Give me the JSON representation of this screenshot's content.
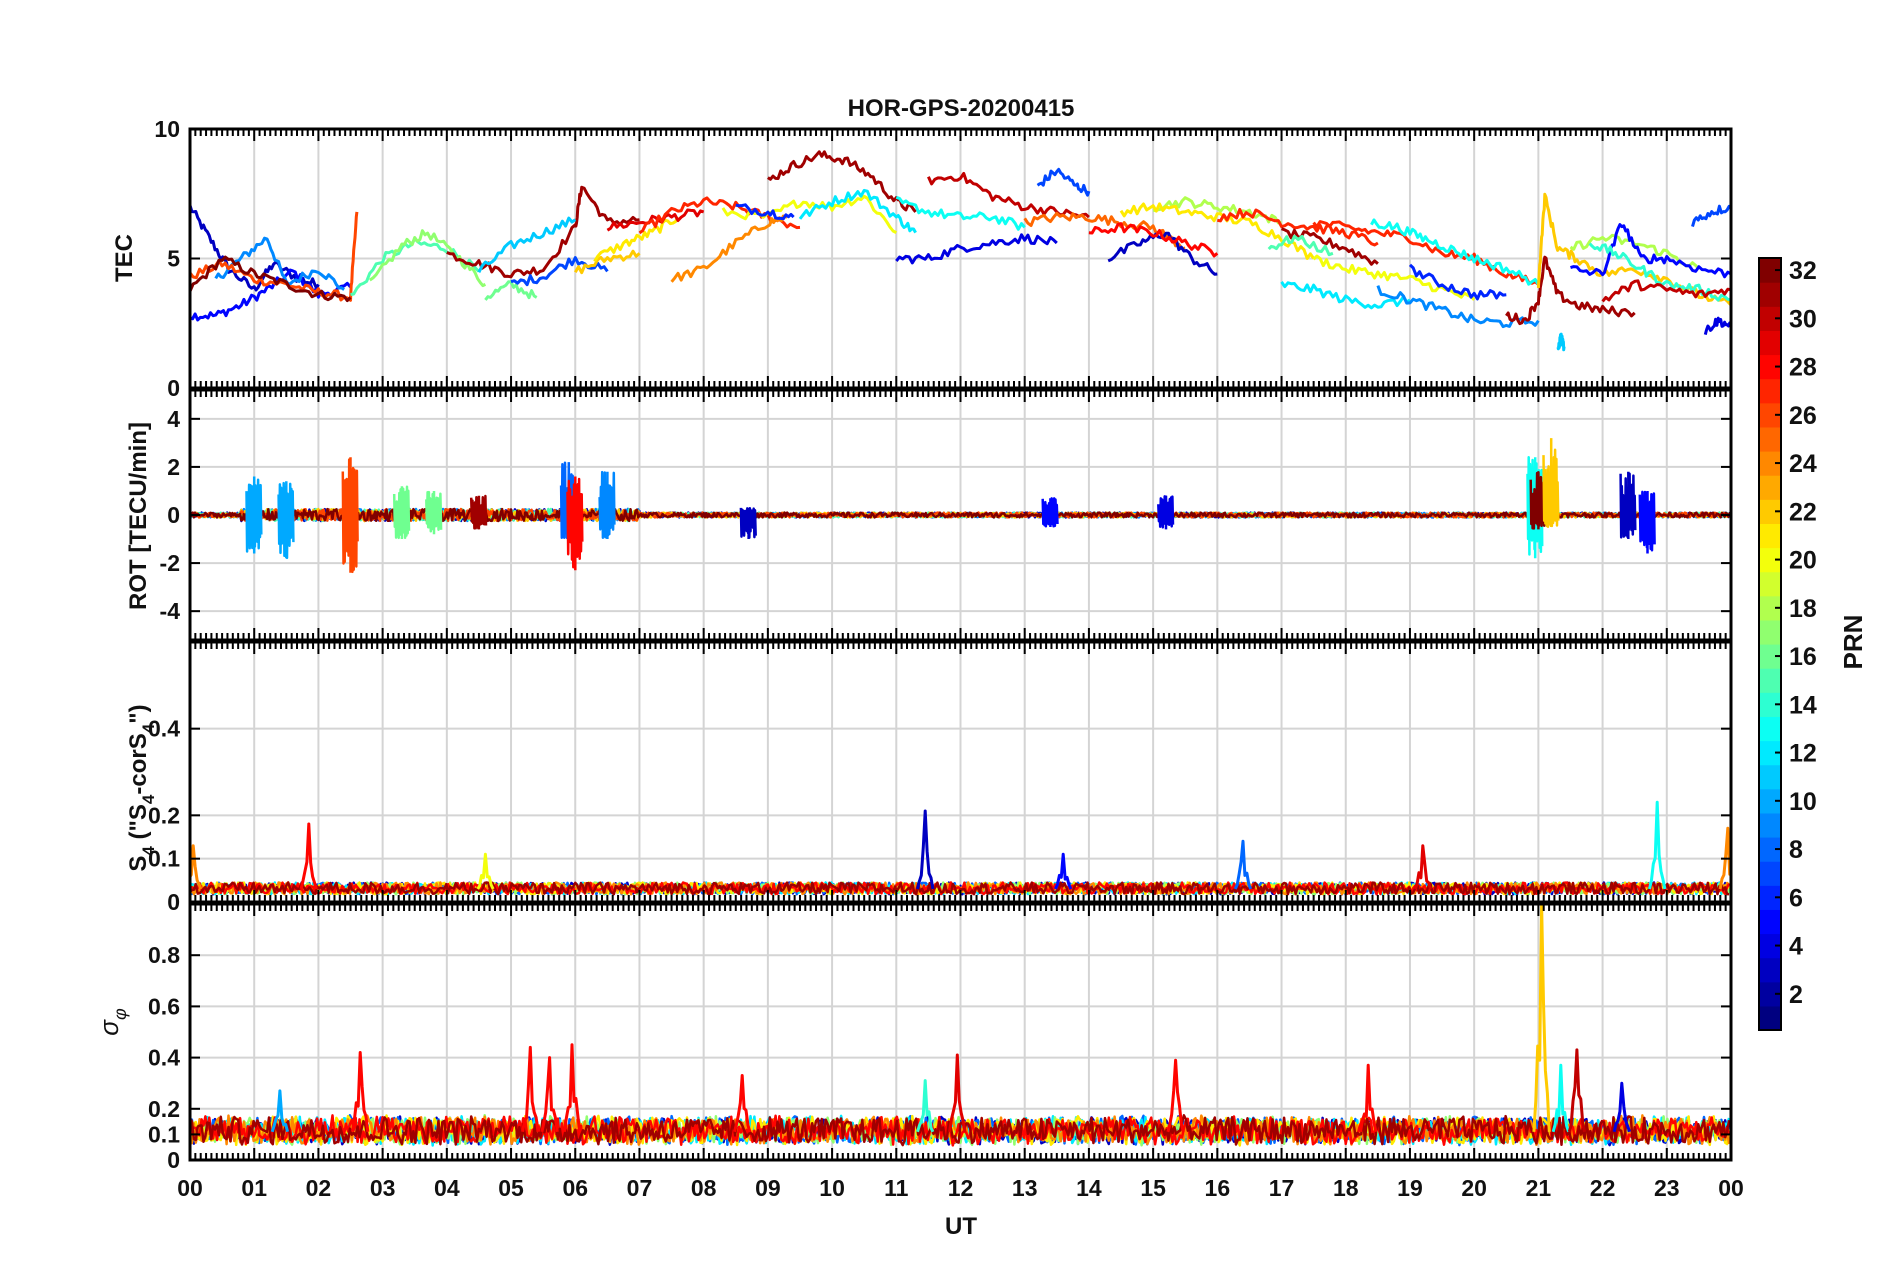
{
  "figure": {
    "title": "HOR-GPS-20200415",
    "xlabel": "UT",
    "x_ticks": [
      "00",
      "01",
      "02",
      "03",
      "04",
      "05",
      "06",
      "07",
      "08",
      "09",
      "10",
      "11",
      "12",
      "13",
      "14",
      "15",
      "16",
      "17",
      "18",
      "19",
      "20",
      "21",
      "22",
      "23",
      "00"
    ]
  },
  "colorbar": {
    "label": "PRN",
    "colormap": "jet",
    "range": [
      1,
      32
    ],
    "ticks": [
      "2",
      "4",
      "6",
      "8",
      "10",
      "12",
      "14",
      "16",
      "18",
      "20",
      "22",
      "24",
      "26",
      "28",
      "30",
      "32"
    ]
  },
  "chart_data": [
    {
      "type": "line",
      "panel": "tec",
      "title": "HOR-GPS-20200415",
      "ylabel": "TEC",
      "xlim": [
        0,
        24
      ],
      "ylim": [
        0,
        10
      ],
      "y_ticks": [
        "0",
        "5",
        "10"
      ],
      "grid": true,
      "series": [
        {
          "prn": 3,
          "x": [
            0.0,
            0.3,
            0.6,
            1.0,
            1.3,
            1.7,
            2.0
          ],
          "y": [
            7.0,
            5.8,
            4.6,
            3.8,
            4.8,
            4.2,
            4.0
          ]
        },
        {
          "prn": 5,
          "x": [
            0.0,
            0.4,
            0.8,
            1.2,
            1.6,
            2.0,
            2.5
          ],
          "y": [
            2.8,
            2.8,
            3.2,
            3.8,
            4.5,
            3.6,
            3.9
          ]
        },
        {
          "prn": 9,
          "x": [
            0.4,
            0.8,
            1.2,
            1.5,
            2.0,
            2.4
          ],
          "y": [
            4.2,
            5.0,
            5.8,
            4.0,
            4.6,
            3.8
          ]
        },
        {
          "prn": 26,
          "x": [
            0.0,
            0.5,
            1.0,
            1.5,
            2.0,
            2.5,
            2.6
          ],
          "y": [
            4.3,
            4.8,
            4.2,
            4.0,
            3.7,
            3.5,
            6.8
          ]
        },
        {
          "prn": 32,
          "x": [
            0.0,
            0.5,
            1.0,
            1.5,
            2.0,
            2.5
          ],
          "y": [
            3.8,
            5.0,
            4.4,
            4.0,
            3.6,
            3.5
          ]
        },
        {
          "prn": 15,
          "x": [
            2.5,
            3.0,
            3.5,
            4.0,
            4.5
          ],
          "y": [
            3.5,
            5.0,
            5.6,
            5.4,
            4.5
          ]
        },
        {
          "prn": 17,
          "x": [
            2.8,
            3.3,
            3.7,
            4.2,
            4.6
          ],
          "y": [
            4.0,
            5.5,
            6.0,
            5.0,
            4.0
          ]
        },
        {
          "prn": 31,
          "x": [
            4.0,
            4.5,
            5.0,
            5.5,
            6.0,
            6.1,
            6.5,
            7.0
          ],
          "y": [
            5.2,
            4.8,
            4.4,
            4.6,
            6.2,
            7.8,
            6.4,
            6.5
          ]
        },
        {
          "prn": 11,
          "x": [
            4.5,
            5.0,
            5.5,
            6.0
          ],
          "y": [
            4.5,
            5.5,
            6.0,
            6.5
          ]
        },
        {
          "prn": 16,
          "x": [
            4.6,
            5.0,
            5.4
          ],
          "y": [
            3.5,
            4.0,
            3.5
          ]
        },
        {
          "prn": 7,
          "x": [
            5.0,
            5.5,
            6.0,
            6.5
          ],
          "y": [
            4.0,
            4.3,
            5.0,
            4.5
          ]
        },
        {
          "prn": 22,
          "x": [
            6.0,
            6.5,
            7.0
          ],
          "y": [
            4.5,
            5.0,
            5.2
          ]
        },
        {
          "prn": 21,
          "x": [
            6.3,
            6.8,
            7.2,
            7.6
          ],
          "y": [
            5.0,
            5.6,
            6.0,
            6.6
          ]
        },
        {
          "prn": 29,
          "x": [
            6.5,
            7.0,
            7.5,
            8.0
          ],
          "y": [
            6.2,
            6.4,
            6.6,
            6.8
          ]
        },
        {
          "prn": 27,
          "x": [
            7.0,
            7.5,
            8.0,
            8.5,
            9.0,
            9.5
          ],
          "y": [
            6.0,
            6.8,
            7.2,
            7.0,
            6.6,
            6.2
          ]
        },
        {
          "prn": 24,
          "x": [
            7.5,
            8.0,
            8.5,
            9.0,
            9.3
          ],
          "y": [
            4.2,
            4.6,
            5.6,
            6.4,
            6.6
          ]
        },
        {
          "prn": 20,
          "x": [
            8.3,
            9.0,
            9.5,
            10.0,
            10.5,
            11.0
          ],
          "y": [
            6.8,
            6.6,
            7.2,
            7.0,
            7.4,
            6.0
          ]
        },
        {
          "prn": 12,
          "x": [
            9.5,
            10.0,
            10.5,
            11.0,
            11.3
          ],
          "y": [
            6.6,
            7.2,
            7.6,
            6.6,
            6.0
          ]
        },
        {
          "prn": 6,
          "x": [
            8.5,
            9.0,
            9.4
          ],
          "y": [
            7.0,
            6.8,
            6.6
          ]
        },
        {
          "prn": 31,
          "x": [
            9.0,
            9.4,
            9.8,
            10.2,
            10.6,
            11.0,
            11.3
          ],
          "y": [
            8.0,
            8.6,
            9.0,
            8.8,
            8.2,
            7.2,
            6.8
          ]
        },
        {
          "prn": 4,
          "x": [
            11.0,
            11.5,
            12.0,
            12.5,
            13.0,
            13.5
          ],
          "y": [
            5.0,
            5.0,
            5.4,
            5.6,
            5.8,
            5.6
          ]
        },
        {
          "prn": 13,
          "x": [
            11.0,
            11.5,
            12.0,
            12.5,
            13.0
          ],
          "y": [
            7.2,
            6.8,
            6.6,
            6.6,
            6.2
          ]
        },
        {
          "prn": 30,
          "x": [
            11.5,
            12.0,
            12.5,
            13.0,
            13.5,
            14.0
          ],
          "y": [
            8.0,
            8.2,
            7.4,
            7.0,
            6.8,
            6.6
          ]
        },
        {
          "prn": 7,
          "x": [
            13.2,
            13.5,
            13.8,
            14.0
          ],
          "y": [
            7.8,
            8.4,
            7.8,
            7.6
          ]
        },
        {
          "prn": 25,
          "x": [
            13.0,
            13.5,
            14.0,
            14.5,
            15.0,
            15.5
          ],
          "y": [
            6.4,
            6.6,
            6.6,
            6.4,
            6.2,
            5.4
          ]
        },
        {
          "prn": 3,
          "x": [
            14.3,
            14.8,
            15.2,
            15.6,
            16.0
          ],
          "y": [
            5.0,
            5.6,
            6.0,
            5.0,
            4.4
          ]
        },
        {
          "prn": 28,
          "x": [
            14.0,
            14.5,
            15.0,
            15.5,
            16.0
          ],
          "y": [
            6.0,
            6.2,
            6.0,
            5.6,
            5.2
          ]
        },
        {
          "prn": 18,
          "x": [
            15.0,
            15.5,
            16.0,
            16.5,
            17.0
          ],
          "y": [
            7.0,
            7.2,
            7.0,
            6.8,
            6.4
          ]
        },
        {
          "prn": 21,
          "x": [
            14.5,
            15.0,
            15.5,
            16.0,
            16.5,
            17.0,
            17.5
          ],
          "y": [
            6.8,
            7.0,
            6.8,
            6.6,
            6.4,
            5.8,
            5.0
          ]
        },
        {
          "prn": 27,
          "x": [
            16.0,
            16.5,
            17.0,
            17.5,
            18.0,
            18.5
          ],
          "y": [
            6.6,
            6.8,
            6.4,
            6.2,
            6.0,
            5.6
          ]
        },
        {
          "prn": 31,
          "x": [
            17.0,
            17.5,
            18.0,
            18.5
          ],
          "y": [
            6.0,
            5.8,
            5.4,
            4.8
          ]
        },
        {
          "prn": 15,
          "x": [
            16.8,
            17.2,
            17.8
          ],
          "y": [
            5.4,
            5.8,
            5.2
          ]
        },
        {
          "prn": 20,
          "x": [
            17.5,
            18.0,
            18.5,
            19.0,
            19.5,
            20.0
          ],
          "y": [
            5.0,
            4.6,
            4.4,
            4.2,
            3.8,
            3.4
          ]
        },
        {
          "prn": 12,
          "x": [
            17.0,
            17.5,
            18.0,
            18.5,
            19.0
          ],
          "y": [
            4.0,
            3.8,
            3.4,
            3.2,
            3.4
          ]
        },
        {
          "prn": 27,
          "x": [
            17.5,
            18.0,
            18.5,
            19.0,
            19.5,
            20.0,
            20.5,
            21.0
          ],
          "y": [
            6.4,
            6.2,
            6.0,
            5.8,
            5.2,
            5.0,
            4.4,
            4.0
          ]
        },
        {
          "prn": 13,
          "x": [
            18.4,
            18.8,
            19.2,
            19.6,
            20.0,
            20.5,
            21.0
          ],
          "y": [
            6.4,
            6.2,
            5.8,
            5.4,
            5.0,
            4.6,
            4.0
          ]
        },
        {
          "prn": 9,
          "x": [
            18.5,
            19.0,
            19.5,
            20.0,
            20.5,
            21.0
          ],
          "y": [
            3.8,
            3.4,
            3.0,
            2.6,
            2.5,
            2.6
          ]
        },
        {
          "prn": 6,
          "x": [
            19.0,
            19.5,
            20.0,
            20.5
          ],
          "y": [
            4.6,
            4.0,
            3.6,
            3.6
          ]
        },
        {
          "prn": 31,
          "x": [
            20.5,
            20.8,
            21.0,
            21.1,
            21.3,
            21.6,
            22.0,
            22.5
          ],
          "y": [
            2.8,
            2.6,
            3.4,
            5.0,
            3.6,
            3.2,
            3.0,
            2.9
          ]
        },
        {
          "prn": 22,
          "x": [
            21.0,
            21.1,
            21.3,
            21.6,
            22.0,
            22.5,
            23.0,
            23.5,
            24.0
          ],
          "y": [
            4.0,
            7.4,
            5.4,
            5.0,
            4.4,
            4.6,
            4.2,
            3.6,
            3.2
          ]
        },
        {
          "prn": 18,
          "x": [
            21.5,
            22.0,
            22.5,
            23.0,
            23.5
          ],
          "y": [
            5.4,
            5.8,
            5.6,
            5.2,
            4.6
          ]
        },
        {
          "prn": 5,
          "x": [
            21.5,
            22.0,
            22.3,
            22.6,
            23.0,
            23.5,
            24.0
          ],
          "y": [
            4.6,
            4.4,
            6.4,
            5.0,
            5.0,
            4.6,
            4.4
          ]
        },
        {
          "prn": 14,
          "x": [
            21.8,
            22.2,
            22.6,
            23.0,
            23.5,
            24.0
          ],
          "y": [
            5.6,
            5.2,
            4.6,
            4.0,
            3.8,
            3.4
          ]
        },
        {
          "prn": 30,
          "x": [
            22.0,
            22.5,
            23.0,
            23.5,
            24.0
          ],
          "y": [
            3.4,
            4.0,
            3.8,
            3.6,
            3.8
          ]
        },
        {
          "prn": 7,
          "x": [
            23.4,
            23.7,
            24.0
          ],
          "y": [
            6.4,
            6.8,
            7.0
          ]
        },
        {
          "prn": 4,
          "x": [
            23.6,
            23.8,
            24.0
          ],
          "y": [
            2.2,
            2.6,
            2.4
          ]
        },
        {
          "prn": 11,
          "x": [
            21.3,
            21.35,
            21.4
          ],
          "y": [
            1.4,
            2.0,
            1.6
          ]
        }
      ]
    },
    {
      "type": "line",
      "panel": "rot",
      "ylabel": "ROT [TECU/min]",
      "xlim": [
        0,
        24
      ],
      "ylim": [
        -5.2,
        5.2
      ],
      "y_ticks": [
        "-4",
        "-2",
        "0",
        "2",
        "4"
      ],
      "grid": true,
      "base_noise_prn": [
        3,
        9,
        15,
        22,
        26,
        32
      ],
      "spikes": [
        {
          "prn": 10,
          "x": 1.0,
          "min": -1.6,
          "max": 1.6
        },
        {
          "prn": 10,
          "x": 1.5,
          "min": -1.8,
          "max": 1.4
        },
        {
          "prn": 26,
          "x": 2.5,
          "min": -2.4,
          "max": 2.4
        },
        {
          "prn": 16,
          "x": 3.3,
          "min": -1.0,
          "max": 1.2
        },
        {
          "prn": 16,
          "x": 3.8,
          "min": -0.8,
          "max": 1.0
        },
        {
          "prn": 31,
          "x": 4.5,
          "min": -0.6,
          "max": 0.8
        },
        {
          "prn": 8,
          "x": 5.9,
          "min": -1.0,
          "max": 2.2
        },
        {
          "prn": 28,
          "x": 6.0,
          "min": -2.3,
          "max": 1.6
        },
        {
          "prn": 9,
          "x": 6.5,
          "min": -1.0,
          "max": 1.8
        },
        {
          "prn": 3,
          "x": 8.7,
          "min": -1.0,
          "max": 0.3
        },
        {
          "prn": 5,
          "x": 13.4,
          "min": -0.5,
          "max": 0.7
        },
        {
          "prn": 4,
          "x": 15.2,
          "min": -0.6,
          "max": 0.8
        },
        {
          "prn": 13,
          "x": 20.95,
          "min": -1.8,
          "max": 2.4
        },
        {
          "prn": 32,
          "x": 21.0,
          "min": -0.6,
          "max": 1.8
        },
        {
          "prn": 22,
          "x": 21.2,
          "min": -0.5,
          "max": 3.2
        },
        {
          "prn": 3,
          "x": 22.4,
          "min": -1.0,
          "max": 1.8
        },
        {
          "prn": 5,
          "x": 22.7,
          "min": -1.6,
          "max": 1.0
        }
      ]
    },
    {
      "type": "line",
      "panel": "s4",
      "ylabel": "S4 (\"S4-corS4\")",
      "xlim": [
        0,
        24
      ],
      "ylim": [
        0,
        0.6
      ],
      "y_ticks": [
        "0",
        "0.1",
        "0.2",
        "0.4"
      ],
      "grid": true,
      "base_level": 0.03,
      "spikes": [
        {
          "prn": 24,
          "x": 0.05,
          "max": 0.13
        },
        {
          "prn": 28,
          "x": 1.85,
          "max": 0.18
        },
        {
          "prn": 20,
          "x": 4.6,
          "max": 0.11
        },
        {
          "prn": 3,
          "x": 11.45,
          "max": 0.21
        },
        {
          "prn": 5,
          "x": 13.6,
          "max": 0.11
        },
        {
          "prn": 8,
          "x": 16.4,
          "max": 0.14
        },
        {
          "prn": 29,
          "x": 19.2,
          "max": 0.13
        },
        {
          "prn": 13,
          "x": 22.85,
          "max": 0.23
        },
        {
          "prn": 24,
          "x": 23.95,
          "max": 0.17
        }
      ]
    },
    {
      "type": "line",
      "panel": "sigma",
      "ylabel": "σφ",
      "xlim": [
        0,
        24
      ],
      "ylim": [
        0,
        1.0
      ],
      "y_ticks": [
        "0",
        "0.1",
        "0.2",
        "0.4",
        "0.6",
        "0.8"
      ],
      "grid": true,
      "base_level": 0.11,
      "spikes": [
        {
          "prn": 10,
          "x": 1.4,
          "max": 0.27
        },
        {
          "prn": 28,
          "x": 2.65,
          "max": 0.42
        },
        {
          "prn": 28,
          "x": 5.3,
          "max": 0.44
        },
        {
          "prn": 28,
          "x": 5.6,
          "max": 0.4
        },
        {
          "prn": 28,
          "x": 5.95,
          "max": 0.45
        },
        {
          "prn": 28,
          "x": 8.6,
          "max": 0.33
        },
        {
          "prn": 14,
          "x": 11.45,
          "max": 0.31
        },
        {
          "prn": 29,
          "x": 11.95,
          "max": 0.41
        },
        {
          "prn": 28,
          "x": 15.35,
          "max": 0.39
        },
        {
          "prn": 28,
          "x": 18.35,
          "max": 0.37
        },
        {
          "prn": 22,
          "x": 21.05,
          "max": 1.0
        },
        {
          "prn": 13,
          "x": 21.35,
          "max": 0.37
        },
        {
          "prn": 30,
          "x": 21.6,
          "max": 0.43
        },
        {
          "prn": 4,
          "x": 22.3,
          "max": 0.3
        }
      ]
    }
  ]
}
